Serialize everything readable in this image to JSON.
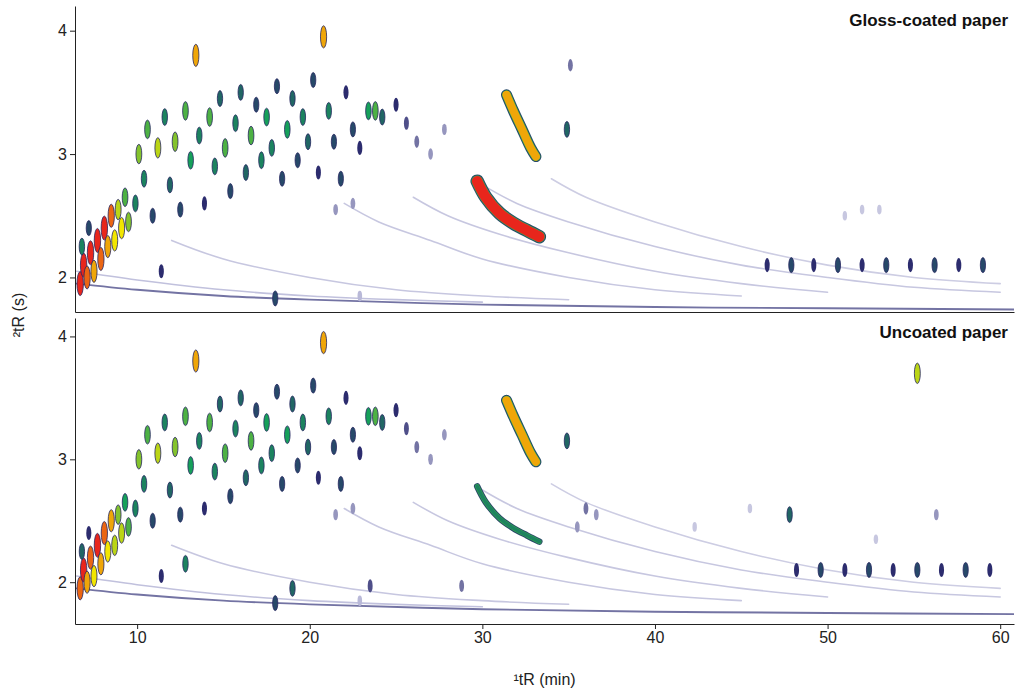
{
  "chart_data": [
    {
      "type": "scatter",
      "title": "Gloss-coated paper",
      "ylabel": "²tR (s)",
      "xlim": [
        6.4,
        60.8
      ],
      "ylim": [
        1.72,
        4.2
      ],
      "yticks": [
        2,
        3,
        4
      ],
      "tick_labels": "y",
      "peaks": {
        "x": [
          6.7,
          6.9,
          7.1,
          7.3,
          7.5,
          7.7,
          7.9,
          8.1,
          8.3,
          8.5,
          8.7,
          8.9,
          9.1,
          9.3,
          9.5,
          6.8,
          7.2,
          9.9,
          10.1,
          10.4,
          10.6,
          10.9,
          11.2,
          11.4,
          11.6,
          11.9,
          12.2,
          12.5,
          12.8,
          13.1,
          13.4,
          13.6,
          13.9,
          14.2,
          14.5,
          14.8,
          15.1,
          15.4,
          15.7,
          16.0,
          16.3,
          16.6,
          16.9,
          17.2,
          17.5,
          17.8,
          18.1,
          18.4,
          18.7,
          19.0,
          19.3,
          19.6,
          19.9,
          20.2,
          20.5,
          20.8,
          21.1,
          21.4,
          21.8,
          22.1,
          22.5,
          22.9,
          23.4,
          23.8,
          24.2,
          25.0,
          25.6,
          26.2,
          27.0,
          27.8,
          18.0,
          22.9,
          21.5,
          22.5,
          34.9,
          35.1,
          46.5,
          47.9,
          49.2,
          50.6,
          52.0,
          53.4,
          54.8,
          56.2,
          57.6,
          59.0,
          51.0,
          52.0,
          53.0
        ],
        "y": [
          1.95,
          2.1,
          2.0,
          2.2,
          2.05,
          2.3,
          2.15,
          2.4,
          2.25,
          2.5,
          2.3,
          2.55,
          2.4,
          2.65,
          2.45,
          2.25,
          2.4,
          2.6,
          3.0,
          2.8,
          3.2,
          2.5,
          3.05,
          2.05,
          3.3,
          2.75,
          3.1,
          2.55,
          3.35,
          2.95,
          3.8,
          3.15,
          2.6,
          3.3,
          2.9,
          3.45,
          3.05,
          2.7,
          3.25,
          3.5,
          2.85,
          3.15,
          3.4,
          2.95,
          3.3,
          3.05,
          3.55,
          2.8,
          3.2,
          3.45,
          2.95,
          3.3,
          3.1,
          3.6,
          2.85,
          3.95,
          3.35,
          3.1,
          2.8,
          3.5,
          3.2,
          3.05,
          3.35,
          3.35,
          3.3,
          3.4,
          3.25,
          3.1,
          3.0,
          3.2,
          1.83,
          1.85,
          2.55,
          2.6,
          3.2,
          3.72,
          2.1,
          2.1,
          2.1,
          2.1,
          2.1,
          2.1,
          2.1,
          2.1,
          2.1,
          2.1,
          2.5,
          2.55,
          2.55
        ],
        "intensity": [
          1,
          1,
          0.95,
          1,
          0.9,
          1,
          0.95,
          1,
          0.9,
          0.95,
          0.85,
          0.8,
          0.85,
          0.7,
          0.75,
          0.6,
          0.5,
          0.6,
          0.75,
          0.6,
          0.7,
          0.5,
          0.8,
          0.45,
          0.6,
          0.55,
          0.75,
          0.5,
          0.7,
          0.65,
          0.9,
          0.6,
          0.45,
          0.7,
          0.6,
          0.55,
          0.7,
          0.5,
          0.6,
          0.55,
          0.55,
          0.7,
          0.5,
          0.6,
          0.65,
          0.6,
          0.5,
          0.5,
          0.65,
          0.55,
          0.5,
          0.6,
          0.55,
          0.5,
          0.45,
          0.9,
          0.6,
          0.5,
          0.5,
          0.45,
          0.5,
          0.45,
          0.65,
          0.7,
          0.55,
          0.45,
          0.4,
          0.35,
          0.3,
          0.3,
          0.5,
          0.25,
          0.3,
          0.3,
          0.55,
          0.35,
          0.45,
          0.5,
          0.45,
          0.5,
          0.45,
          0.5,
          0.45,
          0.5,
          0.45,
          0.5,
          0.2,
          0.2,
          0.2
        ]
      },
      "streaks": [
        {
          "x": [
            6.5,
            10,
            15,
            20,
            30,
            40,
            50,
            60.8
          ],
          "y": [
            1.95,
            1.9,
            1.85,
            1.82,
            1.78,
            1.76,
            1.75,
            1.74
          ],
          "intensity": 0.35
        },
        {
          "x": [
            6.5,
            10,
            15,
            20,
            25,
            30
          ],
          "y": [
            2.05,
            1.98,
            1.9,
            1.85,
            1.82,
            1.8
          ],
          "intensity": 0.22
        },
        {
          "x": [
            12,
            15,
            20,
            25,
            30,
            35
          ],
          "y": [
            2.3,
            2.15,
            2.0,
            1.9,
            1.85,
            1.82
          ],
          "intensity": 0.2
        },
        {
          "x": [
            22,
            24,
            27,
            30,
            35,
            40,
            45
          ],
          "y": [
            2.6,
            2.45,
            2.3,
            2.15,
            2.0,
            1.9,
            1.85
          ],
          "intensity": 0.2
        },
        {
          "x": [
            26,
            28,
            31,
            35,
            40,
            45,
            50
          ],
          "y": [
            2.65,
            2.5,
            2.35,
            2.2,
            2.05,
            1.95,
            1.88
          ],
          "intensity": 0.2
        },
        {
          "x": [
            30,
            32,
            35,
            40,
            45,
            50,
            55,
            60
          ],
          "y": [
            2.75,
            2.6,
            2.45,
            2.25,
            2.1,
            2.0,
            1.92,
            1.88
          ],
          "intensity": 0.2
        },
        {
          "x": [
            34,
            36,
            40,
            45,
            50,
            55,
            60
          ],
          "y": [
            2.8,
            2.65,
            2.45,
            2.25,
            2.1,
            2.0,
            1.95
          ],
          "intensity": 0.18
        },
        {
          "x": [
            31.4,
            31.8,
            32.3,
            32.8,
            33.1
          ],
          "y": [
            3.48,
            3.35,
            3.2,
            3.05,
            2.98
          ],
          "intensity": 0.9
        },
        {
          "x": [
            29.7,
            30.2,
            31.0,
            31.8,
            32.6,
            33.3
          ],
          "y": [
            2.78,
            2.65,
            2.52,
            2.44,
            2.38,
            2.33
          ],
          "intensity": 1.0
        }
      ]
    },
    {
      "type": "scatter",
      "title": "Uncoated paper",
      "xlabel": "¹tR (min)",
      "xlim": [
        6.4,
        60.8
      ],
      "ylim": [
        1.66,
        4.15
      ],
      "xticks": [
        10,
        20,
        30,
        40,
        50,
        60
      ],
      "yticks": [
        2,
        3,
        4
      ],
      "peaks": {
        "x": [
          6.7,
          6.9,
          7.1,
          7.3,
          7.5,
          7.7,
          7.9,
          8.1,
          8.3,
          8.5,
          8.7,
          8.9,
          9.1,
          9.3,
          9.5,
          6.8,
          7.2,
          9.9,
          10.1,
          10.4,
          10.6,
          10.9,
          11.2,
          11.4,
          11.6,
          11.9,
          12.2,
          12.5,
          12.8,
          13.1,
          13.4,
          13.6,
          13.9,
          14.2,
          14.5,
          14.8,
          15.1,
          15.4,
          15.7,
          16.0,
          16.3,
          16.6,
          16.9,
          17.2,
          17.5,
          17.8,
          18.1,
          18.4,
          18.7,
          19.0,
          19.3,
          19.6,
          19.9,
          20.2,
          20.5,
          20.8,
          21.1,
          21.4,
          21.8,
          22.1,
          22.5,
          22.9,
          23.4,
          23.8,
          24.2,
          25.0,
          25.6,
          26.2,
          27.0,
          27.8,
          18.0,
          22.9,
          21.5,
          22.5,
          34.9,
          12.8,
          19.0,
          23.5,
          28.8,
          35.5,
          36.0,
          36.6,
          42.3,
          45.5,
          47.8,
          52.8,
          55.2,
          56.3,
          48.2,
          49.6,
          51.0,
          52.4,
          53.8,
          55.2,
          56.6,
          58.0,
          59.4
        ],
        "y": [
          1.95,
          2.1,
          2.0,
          2.2,
          2.05,
          2.3,
          2.15,
          2.4,
          2.25,
          2.5,
          2.3,
          2.55,
          2.4,
          2.65,
          2.45,
          2.25,
          2.4,
          2.6,
          3.0,
          2.8,
          3.2,
          2.5,
          3.05,
          2.05,
          3.3,
          2.75,
          3.1,
          2.55,
          3.35,
          2.95,
          3.8,
          3.15,
          2.6,
          3.3,
          2.9,
          3.45,
          3.05,
          2.7,
          3.25,
          3.5,
          2.85,
          3.15,
          3.4,
          2.95,
          3.3,
          3.05,
          3.55,
          2.8,
          3.2,
          3.45,
          2.95,
          3.3,
          3.1,
          3.6,
          2.85,
          3.95,
          3.35,
          3.1,
          2.8,
          3.5,
          3.2,
          3.05,
          3.35,
          3.35,
          3.3,
          3.4,
          3.25,
          3.1,
          3.0,
          3.2,
          1.83,
          1.85,
          2.55,
          2.6,
          3.15,
          2.15,
          1.95,
          1.97,
          1.97,
          2.45,
          2.6,
          2.55,
          2.45,
          2.6,
          2.55,
          2.35,
          3.7,
          2.55,
          2.1,
          2.1,
          2.1,
          2.1,
          2.1,
          2.1,
          2.1,
          2.1,
          2.1
        ],
        "intensity": [
          0.95,
          1,
          0.9,
          0.95,
          0.85,
          1,
          0.9,
          0.95,
          0.85,
          0.9,
          0.8,
          0.75,
          0.8,
          0.65,
          0.7,
          0.55,
          0.45,
          0.6,
          0.75,
          0.6,
          0.7,
          0.5,
          0.8,
          0.45,
          0.6,
          0.55,
          0.75,
          0.5,
          0.7,
          0.65,
          0.9,
          0.6,
          0.45,
          0.7,
          0.6,
          0.55,
          0.7,
          0.5,
          0.6,
          0.55,
          0.55,
          0.7,
          0.5,
          0.6,
          0.65,
          0.6,
          0.5,
          0.5,
          0.65,
          0.55,
          0.5,
          0.6,
          0.55,
          0.5,
          0.45,
          0.9,
          0.6,
          0.5,
          0.5,
          0.45,
          0.5,
          0.45,
          0.65,
          0.7,
          0.55,
          0.45,
          0.4,
          0.35,
          0.3,
          0.3,
          0.5,
          0.25,
          0.3,
          0.3,
          0.55,
          0.6,
          0.55,
          0.4,
          0.35,
          0.3,
          0.35,
          0.3,
          0.2,
          0.2,
          0.55,
          0.2,
          0.8,
          0.3,
          0.45,
          0.5,
          0.45,
          0.5,
          0.45,
          0.5,
          0.45,
          0.5,
          0.45
        ]
      },
      "streaks": [
        {
          "x": [
            6.5,
            10,
            15,
            20,
            30,
            40,
            50,
            60.8
          ],
          "y": [
            1.95,
            1.9,
            1.85,
            1.82,
            1.78,
            1.76,
            1.75,
            1.74
          ],
          "intensity": 0.35
        },
        {
          "x": [
            6.5,
            10,
            15,
            20,
            25,
            30
          ],
          "y": [
            2.05,
            1.98,
            1.9,
            1.85,
            1.82,
            1.8
          ],
          "intensity": 0.22
        },
        {
          "x": [
            12,
            15,
            20,
            25,
            30,
            35
          ],
          "y": [
            2.3,
            2.15,
            2.0,
            1.9,
            1.85,
            1.82
          ],
          "intensity": 0.2
        },
        {
          "x": [
            22,
            24,
            27,
            30,
            35,
            40,
            45
          ],
          "y": [
            2.6,
            2.45,
            2.3,
            2.15,
            2.0,
            1.9,
            1.85
          ],
          "intensity": 0.2
        },
        {
          "x": [
            26,
            28,
            31,
            35,
            40,
            45,
            50
          ],
          "y": [
            2.65,
            2.5,
            2.35,
            2.2,
            2.05,
            1.95,
            1.88
          ],
          "intensity": 0.2
        },
        {
          "x": [
            30,
            32,
            35,
            40,
            45,
            50,
            55,
            60
          ],
          "y": [
            2.75,
            2.6,
            2.45,
            2.25,
            2.1,
            2.0,
            1.92,
            1.88
          ],
          "intensity": 0.2
        },
        {
          "x": [
            34,
            36,
            40,
            45,
            50,
            55,
            60
          ],
          "y": [
            2.8,
            2.65,
            2.45,
            2.25,
            2.1,
            2.0,
            1.95
          ],
          "intensity": 0.18
        },
        {
          "x": [
            31.4,
            31.8,
            32.3,
            32.8,
            33.1
          ],
          "y": [
            3.48,
            3.35,
            3.2,
            3.05,
            2.98
          ],
          "intensity": 0.9
        },
        {
          "x": [
            29.7,
            30.2,
            31.0,
            31.8,
            32.6,
            33.3
          ],
          "y": [
            2.78,
            2.65,
            2.52,
            2.44,
            2.38,
            2.33
          ],
          "intensity": 0.6
        }
      ]
    }
  ]
}
